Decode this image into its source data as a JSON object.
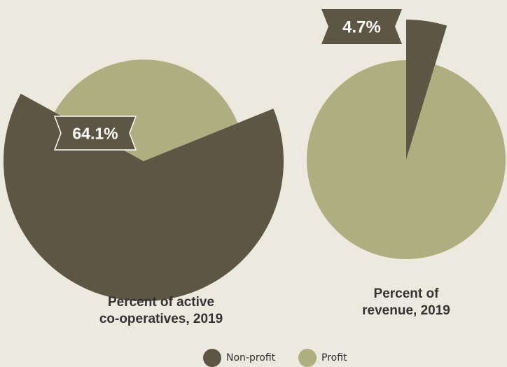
{
  "colors": {
    "nonprofit": "#5e5644",
    "profit": "#aeae80",
    "background": "#ece9df"
  },
  "chart_data": [
    {
      "type": "pie",
      "title": "Percent of active co-operatives, 2019",
      "title_lines": [
        "Percent of active",
        "co-operatives, 2019"
      ],
      "slices": [
        {
          "name": "Non-profit",
          "value": 64.1,
          "label": "64.1%",
          "exploded": true
        },
        {
          "name": "Profit",
          "value": 35.9,
          "exploded": false
        }
      ],
      "legend": "bottom"
    },
    {
      "type": "pie",
      "title": "Percent of revenue, 2019",
      "title_lines": [
        "Percent of",
        "revenue, 2019"
      ],
      "slices": [
        {
          "name": "Non-profit",
          "value": 4.7,
          "label": "4.7%",
          "exploded": true
        },
        {
          "name": "Profit",
          "value": 95.3,
          "exploded": false
        }
      ],
      "legend": "bottom"
    }
  ],
  "legend": {
    "items": [
      {
        "label": "Non-profit"
      },
      {
        "label": "Profit"
      }
    ]
  }
}
